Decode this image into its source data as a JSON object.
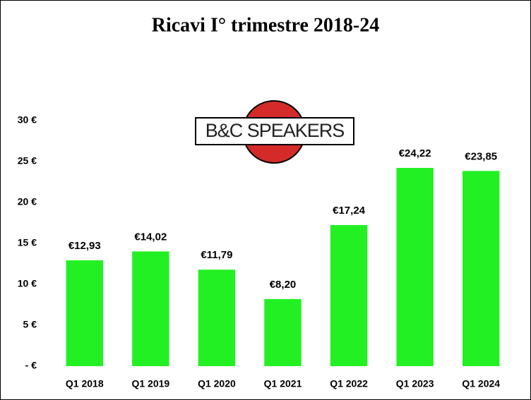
{
  "logo": {
    "text": "B&C SPEAKERS"
  },
  "chart_data": {
    "type": "bar",
    "title": "Ricavi I° trimestre 2018-24",
    "categories": [
      "Q1 2018",
      "Q1 2019",
      "Q1 2020",
      "Q1 2021",
      "Q1 2022",
      "Q1 2023",
      "Q1 2024"
    ],
    "values": [
      12.93,
      14.02,
      11.79,
      8.2,
      17.24,
      24.22,
      23.85
    ],
    "value_labels": [
      "€12,93",
      "€14,02",
      "€11,79",
      "€8,20",
      "€17,24",
      "€24,22",
      "€23,85"
    ],
    "color": "#22f022",
    "ylim": [
      0,
      30
    ],
    "yticks": [
      {
        "value": 0,
        "label": "- €"
      },
      {
        "value": 5,
        "label": "5 €"
      },
      {
        "value": 10,
        "label": "10 €"
      },
      {
        "value": 15,
        "label": "15 €"
      },
      {
        "value": 20,
        "label": "20 €"
      },
      {
        "value": 25,
        "label": "25 €"
      },
      {
        "value": 30,
        "label": "30 €"
      }
    ]
  }
}
